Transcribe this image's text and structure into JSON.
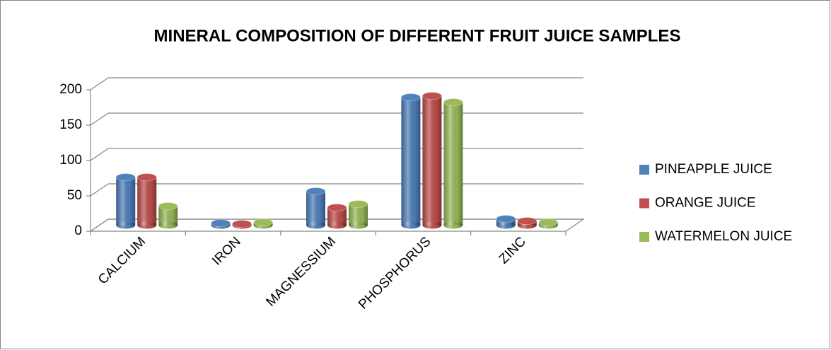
{
  "chart_data": {
    "type": "bar3d",
    "title": "MINERAL COMPOSITION OF DIFFERENT FRUIT JUICE SAMPLES",
    "categories": [
      "CALCIUM",
      "IRON",
      "MAGNESSIUM",
      "PHOSPHORUS",
      "ZINC"
    ],
    "series": [
      {
        "name": "PINEAPPLE JUICE",
        "color": "#4f81bd",
        "values": [
          68,
          3,
          48,
          181,
          9
        ]
      },
      {
        "name": "ORANGE JUICE",
        "color": "#c0504d",
        "values": [
          68,
          2,
          25,
          183,
          6
        ]
      },
      {
        "name": "WATERMELON JUICE",
        "color": "#9bbb59",
        "values": [
          27,
          4,
          30,
          174,
          4
        ]
      }
    ],
    "ylim": [
      0,
      200
    ],
    "yticks": [
      0,
      50,
      100,
      150,
      200
    ],
    "grid": true,
    "legend": "right"
  }
}
